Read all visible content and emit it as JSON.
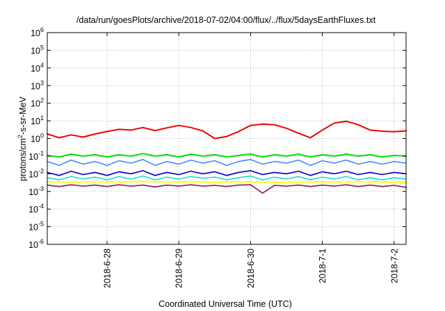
{
  "chart_data": {
    "type": "line",
    "title": "/data/run/goesPlots/archive/2018-07-02/04:00/flux/../flux/5daysEarthFluxes.txt",
    "xlabel": "Coordinated Universal Time (UTC)",
    "ylabel": {
      "prefix": "protons/cm",
      "superscript": "2",
      "suffix": "-s-sr-MeV"
    },
    "yscale": "log",
    "ylim": [
      1e-06,
      1000000.0
    ],
    "xlim": [
      "2018-06-27 04:00",
      "2018-07-02 04:00"
    ],
    "grid": true,
    "y_ticks": [
      {
        "value": 1e-06,
        "base": "10",
        "exp": "-6"
      },
      {
        "value": 1e-05,
        "base": "10",
        "exp": "-5"
      },
      {
        "value": 0.0001,
        "base": "10",
        "exp": "-4"
      },
      {
        "value": 0.001,
        "base": "10",
        "exp": "-3"
      },
      {
        "value": 0.01,
        "base": "10",
        "exp": "-2"
      },
      {
        "value": 0.1,
        "base": "10",
        "exp": "-1"
      },
      {
        "value": 1.0,
        "base": "10",
        "exp": "0"
      },
      {
        "value": 10.0,
        "base": "10",
        "exp": "1"
      },
      {
        "value": 100.0,
        "base": "10",
        "exp": "2"
      },
      {
        "value": 1000.0,
        "base": "10",
        "exp": "3"
      },
      {
        "value": 10000.0,
        "base": "10",
        "exp": "4"
      },
      {
        "value": 100000.0,
        "base": "10",
        "exp": "5"
      },
      {
        "value": 1000000.0,
        "base": "10",
        "exp": "6"
      }
    ],
    "x_ticks": [
      {
        "date": "2018-06-28 00:00",
        "label": "2018-6-28"
      },
      {
        "date": "2018-06-29 00:00",
        "label": "2018-6-29"
      },
      {
        "date": "2018-06-30 00:00",
        "label": "2018-6-30"
      },
      {
        "date": "2018-07-01 00:00",
        "label": "2018-7-1"
      },
      {
        "date": "2018-07-02 00:00",
        "label": "2018-7-2"
      }
    ],
    "series": [
      {
        "color": "#ee0000",
        "width": 2,
        "points": [
          [
            "2018-06-27 04:00",
            1.8
          ],
          [
            "2018-06-27 08:00",
            1.1
          ],
          [
            "2018-06-27 12:00",
            1.6
          ],
          [
            "2018-06-27 16:00",
            1.2
          ],
          [
            "2018-06-27 20:00",
            1.8
          ],
          [
            "2018-06-28 00:00",
            2.5
          ],
          [
            "2018-06-28 04:00",
            3.3
          ],
          [
            "2018-06-28 08:00",
            3.0
          ],
          [
            "2018-06-28 12:00",
            4.2
          ],
          [
            "2018-06-28 16:00",
            2.8
          ],
          [
            "2018-06-28 20:00",
            4.0
          ],
          [
            "2018-06-29 00:00",
            5.5
          ],
          [
            "2018-06-29 04:00",
            4.2
          ],
          [
            "2018-06-29 08:00",
            2.7
          ],
          [
            "2018-06-29 12:00",
            1.0
          ],
          [
            "2018-06-29 16:00",
            1.3
          ],
          [
            "2018-06-29 20:00",
            2.5
          ],
          [
            "2018-06-30 00:00",
            5.5
          ],
          [
            "2018-06-30 04:00",
            6.5
          ],
          [
            "2018-06-30 08:00",
            6.0
          ],
          [
            "2018-06-30 12:00",
            3.8
          ],
          [
            "2018-06-30 16:00",
            2.0
          ],
          [
            "2018-06-30 20:00",
            1.1
          ],
          [
            "2018-07-01 00:00",
            3.0
          ],
          [
            "2018-07-01 04:00",
            7.5
          ],
          [
            "2018-07-01 08:00",
            9.5
          ],
          [
            "2018-07-01 12:00",
            6.0
          ],
          [
            "2018-07-01 16:00",
            3.0
          ],
          [
            "2018-07-01 20:00",
            2.6
          ],
          [
            "2018-07-02 00:00",
            2.4
          ],
          [
            "2018-07-02 04:00",
            2.7
          ]
        ]
      },
      {
        "color": "#00e000",
        "width": 2,
        "points": [
          [
            "2018-06-27 04:00",
            0.11
          ],
          [
            "2018-06-27 08:00",
            0.09
          ],
          [
            "2018-06-27 12:00",
            0.13
          ],
          [
            "2018-06-27 16:00",
            0.1
          ],
          [
            "2018-06-27 20:00",
            0.12
          ],
          [
            "2018-06-28 00:00",
            0.09
          ],
          [
            "2018-06-28 04:00",
            0.12
          ],
          [
            "2018-06-28 08:00",
            0.1
          ],
          [
            "2018-06-28 12:00",
            0.14
          ],
          [
            "2018-06-28 16:00",
            0.1
          ],
          [
            "2018-06-28 20:00",
            0.12
          ],
          [
            "2018-06-29 00:00",
            0.09
          ],
          [
            "2018-06-29 04:00",
            0.13
          ],
          [
            "2018-06-29 08:00",
            0.1
          ],
          [
            "2018-06-29 12:00",
            0.12
          ],
          [
            "2018-06-29 16:00",
            0.09
          ],
          [
            "2018-06-29 20:00",
            0.11
          ],
          [
            "2018-06-30 00:00",
            0.13
          ],
          [
            "2018-06-30 04:00",
            0.09
          ],
          [
            "2018-06-30 08:00",
            0.12
          ],
          [
            "2018-06-30 12:00",
            0.1
          ],
          [
            "2018-06-30 16:00",
            0.13
          ],
          [
            "2018-06-30 20:00",
            0.09
          ],
          [
            "2018-07-01 00:00",
            0.12
          ],
          [
            "2018-07-01 04:00",
            0.1
          ],
          [
            "2018-07-01 08:00",
            0.13
          ],
          [
            "2018-07-01 12:00",
            0.1
          ],
          [
            "2018-07-01 16:00",
            0.12
          ],
          [
            "2018-07-01 20:00",
            0.09
          ],
          [
            "2018-07-02 00:00",
            0.11
          ],
          [
            "2018-07-02 04:00",
            0.1
          ]
        ]
      },
      {
        "color": "#3b8cff",
        "width": 1.6,
        "points": [
          [
            "2018-06-27 04:00",
            0.05
          ],
          [
            "2018-06-27 08:00",
            0.03
          ],
          [
            "2018-06-27 12:00",
            0.06
          ],
          [
            "2018-06-27 16:00",
            0.035
          ],
          [
            "2018-06-27 20:00",
            0.05
          ],
          [
            "2018-06-28 00:00",
            0.03
          ],
          [
            "2018-06-28 04:00",
            0.055
          ],
          [
            "2018-06-28 08:00",
            0.04
          ],
          [
            "2018-06-28 12:00",
            0.065
          ],
          [
            "2018-06-28 16:00",
            0.03
          ],
          [
            "2018-06-28 20:00",
            0.05
          ],
          [
            "2018-06-29 00:00",
            0.035
          ],
          [
            "2018-06-29 04:00",
            0.06
          ],
          [
            "2018-06-29 08:00",
            0.04
          ],
          [
            "2018-06-29 12:00",
            0.055
          ],
          [
            "2018-06-29 16:00",
            0.03
          ],
          [
            "2018-06-29 20:00",
            0.05
          ],
          [
            "2018-06-30 00:00",
            0.065
          ],
          [
            "2018-06-30 04:00",
            0.035
          ],
          [
            "2018-06-30 08:00",
            0.05
          ],
          [
            "2018-06-30 12:00",
            0.04
          ],
          [
            "2018-06-30 16:00",
            0.06
          ],
          [
            "2018-06-30 20:00",
            0.03
          ],
          [
            "2018-07-01 00:00",
            0.055
          ],
          [
            "2018-07-01 04:00",
            0.04
          ],
          [
            "2018-07-01 08:00",
            0.06
          ],
          [
            "2018-07-01 12:00",
            0.035
          ],
          [
            "2018-07-01 16:00",
            0.05
          ],
          [
            "2018-07-01 20:00",
            0.035
          ],
          [
            "2018-07-02 00:00",
            0.05
          ],
          [
            "2018-07-02 04:00",
            0.04
          ]
        ]
      },
      {
        "color": "#0000cc",
        "width": 1.6,
        "points": [
          [
            "2018-06-27 04:00",
            0.012
          ],
          [
            "2018-06-27 08:00",
            0.008
          ],
          [
            "2018-06-27 12:00",
            0.014
          ],
          [
            "2018-06-27 16:00",
            0.009
          ],
          [
            "2018-06-27 20:00",
            0.012
          ],
          [
            "2018-06-28 00:00",
            0.008
          ],
          [
            "2018-06-28 04:00",
            0.013
          ],
          [
            "2018-06-28 08:00",
            0.01
          ],
          [
            "2018-06-28 12:00",
            0.015
          ],
          [
            "2018-06-28 16:00",
            0.008
          ],
          [
            "2018-06-28 20:00",
            0.012
          ],
          [
            "2018-06-29 00:00",
            0.009
          ],
          [
            "2018-06-29 04:00",
            0.014
          ],
          [
            "2018-06-29 08:00",
            0.01
          ],
          [
            "2018-06-29 12:00",
            0.013
          ],
          [
            "2018-06-29 16:00",
            0.008
          ],
          [
            "2018-06-29 20:00",
            0.012
          ],
          [
            "2018-06-30 00:00",
            0.015
          ],
          [
            "2018-06-30 04:00",
            0.009
          ],
          [
            "2018-06-30 08:00",
            0.012
          ],
          [
            "2018-06-30 12:00",
            0.01
          ],
          [
            "2018-06-30 16:00",
            0.014
          ],
          [
            "2018-06-30 20:00",
            0.008
          ],
          [
            "2018-07-01 00:00",
            0.013
          ],
          [
            "2018-07-01 04:00",
            0.01
          ],
          [
            "2018-07-01 08:00",
            0.014
          ],
          [
            "2018-07-01 12:00",
            0.009
          ],
          [
            "2018-07-01 16:00",
            0.012
          ],
          [
            "2018-07-01 20:00",
            0.009
          ],
          [
            "2018-07-02 00:00",
            0.012
          ],
          [
            "2018-07-02 04:00",
            0.01
          ]
        ]
      },
      {
        "color": "#00d8c8",
        "width": 1.4,
        "points": [
          [
            "2018-06-27 04:00",
            0.006
          ],
          [
            "2018-06-27 08:00",
            0.0045
          ],
          [
            "2018-06-27 12:00",
            0.007
          ],
          [
            "2018-06-27 16:00",
            0.005
          ],
          [
            "2018-06-27 20:00",
            0.0065
          ],
          [
            "2018-06-28 00:00",
            0.0045
          ],
          [
            "2018-06-28 04:00",
            0.007
          ],
          [
            "2018-06-28 08:00",
            0.005
          ],
          [
            "2018-06-28 12:00",
            0.0075
          ],
          [
            "2018-06-28 16:00",
            0.0045
          ],
          [
            "2018-06-28 20:00",
            0.0065
          ],
          [
            "2018-06-29 00:00",
            0.005
          ],
          [
            "2018-06-29 04:00",
            0.007
          ],
          [
            "2018-06-29 08:00",
            0.0055
          ],
          [
            "2018-06-29 12:00",
            0.0065
          ],
          [
            "2018-06-29 16:00",
            0.0045
          ],
          [
            "2018-06-29 20:00",
            0.006
          ],
          [
            "2018-06-30 00:00",
            0.0075
          ],
          [
            "2018-06-30 04:00",
            0.0045
          ],
          [
            "2018-06-30 08:00",
            0.0065
          ],
          [
            "2018-06-30 12:00",
            0.005
          ],
          [
            "2018-06-30 16:00",
            0.007
          ],
          [
            "2018-06-30 20:00",
            0.0045
          ],
          [
            "2018-07-01 00:00",
            0.0065
          ],
          [
            "2018-07-01 04:00",
            0.005
          ],
          [
            "2018-07-01 08:00",
            0.007
          ],
          [
            "2018-07-01 12:00",
            0.0045
          ],
          [
            "2018-07-01 16:00",
            0.006
          ],
          [
            "2018-07-01 20:00",
            0.0045
          ],
          [
            "2018-07-02 00:00",
            0.006
          ],
          [
            "2018-07-02 04:00",
            0.005
          ]
        ]
      },
      {
        "color": "#ffff00",
        "width": 2,
        "points": [
          [
            "2018-06-27 04:00",
            0.0035
          ],
          [
            "2018-06-27 12:00",
            0.0033
          ],
          [
            "2018-06-27 20:00",
            0.0036
          ],
          [
            "2018-06-28 04:00",
            0.0034
          ],
          [
            "2018-06-28 12:00",
            0.0037
          ],
          [
            "2018-06-28 20:00",
            0.0034
          ],
          [
            "2018-06-29 04:00",
            0.0036
          ],
          [
            "2018-06-29 12:00",
            0.0033
          ],
          [
            "2018-06-29 20:00",
            0.0035
          ],
          [
            "2018-06-30 04:00",
            0.0034
          ],
          [
            "2018-06-30 12:00",
            0.0032
          ],
          [
            "2018-06-30 20:00",
            0.0035
          ],
          [
            "2018-07-01 04:00",
            0.0034
          ],
          [
            "2018-07-01 12:00",
            0.0036
          ],
          [
            "2018-07-01 20:00",
            0.0034
          ],
          [
            "2018-07-02 04:00",
            0.0033
          ]
        ]
      },
      {
        "color": "#8b2b6e",
        "width": 1.8,
        "points": [
          [
            "2018-06-27 04:00",
            0.0023
          ],
          [
            "2018-06-27 08:00",
            0.0019
          ],
          [
            "2018-06-27 12:00",
            0.0024
          ],
          [
            "2018-06-27 16:00",
            0.002
          ],
          [
            "2018-06-27 20:00",
            0.0023
          ],
          [
            "2018-06-28 00:00",
            0.0019
          ],
          [
            "2018-06-28 04:00",
            0.0024
          ],
          [
            "2018-06-28 08:00",
            0.002
          ],
          [
            "2018-06-28 12:00",
            0.0023
          ],
          [
            "2018-06-28 16:00",
            0.0018
          ],
          [
            "2018-06-28 20:00",
            0.0023
          ],
          [
            "2018-06-29 00:00",
            0.002
          ],
          [
            "2018-06-29 04:00",
            0.0024
          ],
          [
            "2018-06-29 08:00",
            0.002
          ],
          [
            "2018-06-29 12:00",
            0.0022
          ],
          [
            "2018-06-29 16:00",
            0.0019
          ],
          [
            "2018-06-29 20:00",
            0.0023
          ],
          [
            "2018-06-30 00:00",
            0.0024
          ],
          [
            "2018-06-30 04:00",
            0.0008
          ],
          [
            "2018-06-30 08:00",
            0.0022
          ],
          [
            "2018-06-30 12:00",
            0.002
          ],
          [
            "2018-06-30 16:00",
            0.0023
          ],
          [
            "2018-06-30 20:00",
            0.0019
          ],
          [
            "2018-07-01 00:00",
            0.0023
          ],
          [
            "2018-07-01 04:00",
            0.002
          ],
          [
            "2018-07-01 08:00",
            0.0024
          ],
          [
            "2018-07-01 12:00",
            0.0019
          ],
          [
            "2018-07-01 16:00",
            0.0023
          ],
          [
            "2018-07-01 20:00",
            0.0019
          ],
          [
            "2018-07-02 00:00",
            0.0022
          ],
          [
            "2018-07-02 04:00",
            0.0017
          ]
        ]
      }
    ]
  }
}
